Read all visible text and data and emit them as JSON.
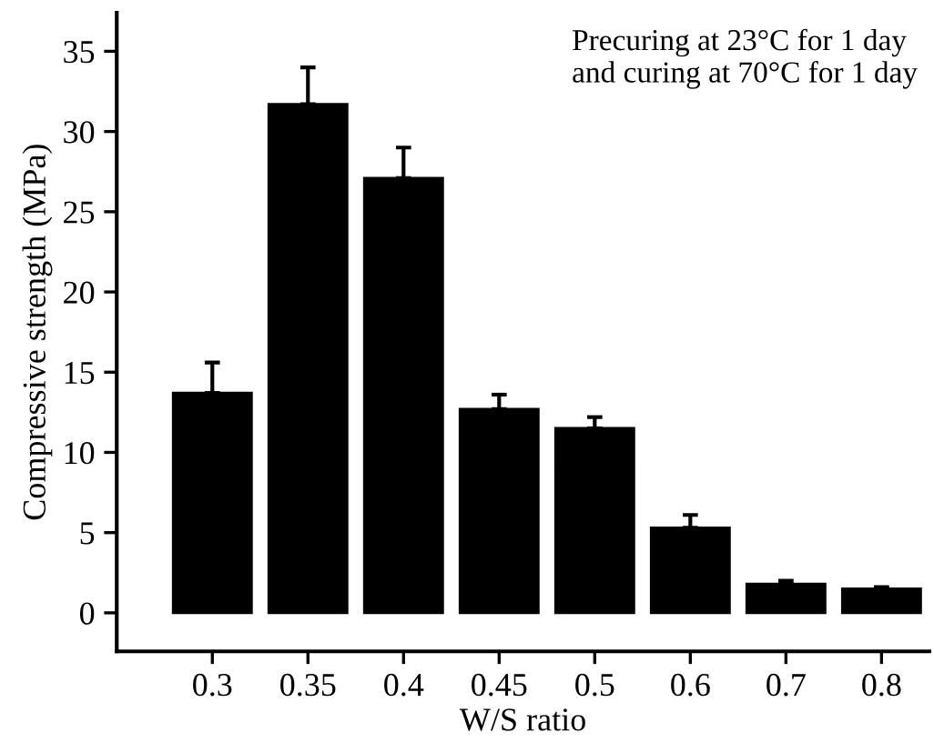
{
  "chart_data": {
    "type": "bar",
    "xlabel": "W/S ratio",
    "ylabel": "Compressive strength (MPa)",
    "categories": [
      "0.3",
      "0.35",
      "0.4",
      "0.45",
      "0.5",
      "0.6",
      "0.7",
      "0.8"
    ],
    "values": [
      13.7,
      31.7,
      27.1,
      12.7,
      11.5,
      5.3,
      1.8,
      1.5
    ],
    "errors": [
      [
        13.7,
        15.6
      ],
      [
        31.7,
        34.0
      ],
      [
        27.1,
        29.0
      ],
      [
        12.7,
        13.6
      ],
      [
        11.5,
        12.2
      ],
      [
        5.3,
        6.1
      ],
      [
        1.8,
        2.0
      ],
      [
        1.5,
        1.6
      ]
    ],
    "color": "#000000",
    "ylim": [
      -2.4,
      37.4
    ],
    "yticks": [
      0,
      5,
      10,
      15,
      20,
      25,
      30,
      35
    ],
    "grid": false,
    "legend": false,
    "annotations": [
      "Precuring at 23°C for 1 day\nand curing at 70°C for 1 day"
    ]
  }
}
